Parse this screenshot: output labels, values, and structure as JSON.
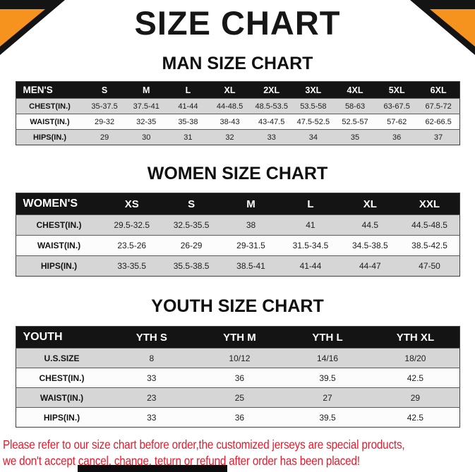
{
  "page": {
    "title": "SIZE CHART",
    "footer": {
      "line1": "Please refer to our size chart before order,the customized jerseys are special products,",
      "line2": "we don't accept cancel, change, teturn or refund after order has been placed!"
    }
  },
  "colors": {
    "accent_orange": "#f6921e",
    "table_header_black": "#141414",
    "row_gray": "#d6d6d6",
    "row_white": "#fcfcfc",
    "footer_red": "#e8192c"
  },
  "men": {
    "heading": "MAN SIZE CHART",
    "header": [
      "MEN'S",
      "S",
      "M",
      "L",
      "XL",
      "2XL",
      "3XL",
      "4XL",
      "5XL",
      "6XL"
    ],
    "rows": [
      [
        "CHEST(IN.)",
        "35-37.5",
        "37.5-41",
        "41-44",
        "44-48.5",
        "48.5-53.5",
        "53.5-58",
        "58-63",
        "63-67.5",
        "67.5-72"
      ],
      [
        "WAIST(IN.)",
        "29-32",
        "32-35",
        "35-38",
        "38-43",
        "43-47.5",
        "47.5-52.5",
        "52.5-57",
        "57-62",
        "62-66.5"
      ],
      [
        "HIPS(IN.)",
        "29",
        "30",
        "31",
        "32",
        "33",
        "34",
        "35",
        "36",
        "37"
      ]
    ]
  },
  "women": {
    "heading": "WOMEN SIZE CHART",
    "header": [
      "WOMEN'S",
      "XS",
      "S",
      "M",
      "L",
      "XL",
      "XXL"
    ],
    "rows": [
      [
        "CHEST(IN.)",
        "29.5-32.5",
        "32.5-35.5",
        "38",
        "41",
        "44.5",
        "44.5-48.5"
      ],
      [
        "WAIST(IN.)",
        "23.5-26",
        "26-29",
        "29-31.5",
        "31.5-34.5",
        "34.5-38.5",
        "38.5-42.5"
      ],
      [
        "HIPS(IN.)",
        "33-35.5",
        "35.5-38.5",
        "38.5-41",
        "41-44",
        "44-47",
        "47-50"
      ]
    ]
  },
  "youth": {
    "heading": "YOUTH SIZE CHART",
    "header": [
      "YOUTH",
      "YTH S",
      "YTH M",
      "YTH L",
      "YTH XL"
    ],
    "rows": [
      [
        "U.S.SIZE",
        "8",
        "10/12",
        "14/16",
        "18/20"
      ],
      [
        "CHEST(IN.)",
        "33",
        "36",
        "39.5",
        "42.5"
      ],
      [
        "WAIST(IN.)",
        "23",
        "25",
        "27",
        "29"
      ],
      [
        "HIPS(IN.)",
        "33",
        "36",
        "39.5",
        "42.5"
      ]
    ]
  }
}
